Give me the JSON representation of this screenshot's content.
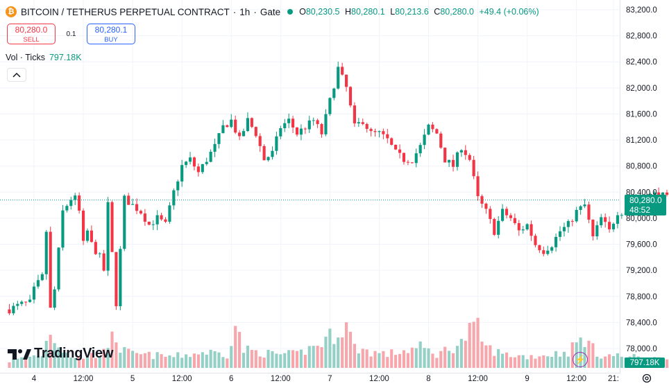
{
  "header": {
    "symbol": "BITCOIN / TETHERUS PERPETUAL CONTRACT",
    "interval": "1h",
    "exchange": "Gate",
    "separator": "·",
    "icon": "bitcoin-icon",
    "ohlc": {
      "o_label": "O",
      "o": "80,230.5",
      "h_label": "H",
      "h": "80,280.1",
      "l_label": "L",
      "l": "80,213.6",
      "c_label": "C",
      "c": "80,280.0",
      "change": "+49.4 (+0.06%)"
    }
  },
  "trade": {
    "sell_price": "80,280.0",
    "sell_label": "SELL",
    "spread": "0.1",
    "buy_price": "80,280.1",
    "buy_label": "BUY"
  },
  "volume_legend": {
    "label": "Vol · Ticks",
    "value": "797.18K"
  },
  "logo_text": "TradingView",
  "last_price": {
    "value": "80,280.0",
    "countdown": "48:52"
  },
  "last_volume": "797.18K",
  "colors": {
    "up": "#089981",
    "down": "#f23645",
    "up_volume": "#95d0c7",
    "down_volume": "#f7a6ab",
    "grid": "#f0f3fa"
  },
  "chart_data": {
    "type": "candlestick",
    "y_axis": {
      "min": 77800,
      "max": 83300,
      "ticks": [
        "83,200.0",
        "82,800.0",
        "82,400.0",
        "82,000.0",
        "81,600.0",
        "81,200.0",
        "80,800.0",
        "80,400.0",
        "80,000.0",
        "79,600.0",
        "79,200.0",
        "78,800.0",
        "78,400.0",
        "78,000.0"
      ],
      "tick_values": [
        83200,
        82800,
        82400,
        82000,
        81600,
        81200,
        80800,
        80400,
        80000,
        79600,
        79200,
        78800,
        78400,
        78000
      ]
    },
    "x_axis": {
      "labels": [
        "4",
        "12:00",
        "5",
        "12:00",
        "6",
        "12:00",
        "7",
        "12:00",
        "8",
        "12:00",
        "9",
        "12:00",
        "21:"
      ],
      "label_hours": [
        0,
        12,
        24,
        36,
        48,
        60,
        72,
        84,
        96,
        108,
        120,
        132,
        141
      ]
    },
    "hours_before_first_label": 6,
    "hours_after_last_label": 0,
    "grid": true,
    "last_price_line": 80280,
    "anchors_price": [
      [
        0,
        78600
      ],
      [
        3,
        78680
      ],
      [
        5,
        78700
      ],
      [
        6,
        78900
      ],
      [
        8,
        79100
      ],
      [
        9,
        79800
      ],
      [
        10,
        78600
      ],
      [
        11,
        78900
      ],
      [
        12,
        79500
      ],
      [
        13,
        80100
      ],
      [
        15,
        80300
      ],
      [
        16,
        80300
      ],
      [
        17,
        80100
      ],
      [
        18,
        79600
      ],
      [
        19,
        79800
      ],
      [
        20,
        79600
      ],
      [
        22,
        79400
      ],
      [
        23,
        79200
      ],
      [
        24,
        80200
      ],
      [
        26,
        78700
      ],
      [
        28,
        80300
      ],
      [
        30,
        80200
      ],
      [
        32,
        80100
      ],
      [
        34,
        79900
      ],
      [
        36,
        80000
      ],
      [
        38,
        79900
      ],
      [
        40,
        80400
      ],
      [
        42,
        80800
      ],
      [
        44,
        80900
      ],
      [
        46,
        80700
      ],
      [
        48,
        80900
      ],
      [
        50,
        81100
      ],
      [
        52,
        81400
      ],
      [
        54,
        81500
      ],
      [
        56,
        81200
      ],
      [
        58,
        81500
      ],
      [
        60,
        81300
      ],
      [
        62,
        80900
      ],
      [
        64,
        81000
      ],
      [
        66,
        81400
      ],
      [
        68,
        81500
      ],
      [
        70,
        81300
      ],
      [
        72,
        81400
      ],
      [
        74,
        81500
      ],
      [
        76,
        81300
      ],
      [
        78,
        81800
      ],
      [
        80,
        82300
      ],
      [
        82,
        82000
      ],
      [
        84,
        81400
      ],
      [
        86,
        81500
      ],
      [
        88,
        81300
      ],
      [
        90,
        81300
      ],
      [
        92,
        81200
      ],
      [
        94,
        81000
      ],
      [
        96,
        80900
      ],
      [
        98,
        80900
      ],
      [
        100,
        81100
      ],
      [
        102,
        81400
      ],
      [
        104,
        81300
      ],
      [
        106,
        80900
      ],
      [
        108,
        80800
      ],
      [
        110,
        81100
      ],
      [
        112,
        80900
      ],
      [
        114,
        80300
      ],
      [
        116,
        80100
      ],
      [
        118,
        79800
      ],
      [
        120,
        80100
      ],
      [
        122,
        80000
      ],
      [
        124,
        79800
      ],
      [
        126,
        79900
      ],
      [
        128,
        79600
      ],
      [
        130,
        79500
      ],
      [
        132,
        79600
      ],
      [
        134,
        79800
      ],
      [
        136,
        79900
      ],
      [
        138,
        80100
      ],
      [
        140,
        80200
      ],
      [
        142,
        79700
      ],
      [
        144,
        80000
      ],
      [
        146,
        79800
      ],
      [
        148,
        80100
      ],
      [
        150,
        80100
      ],
      [
        152,
        80200
      ],
      [
        154,
        80300
      ],
      [
        156,
        80350
      ],
      [
        158,
        80380
      ],
      [
        160,
        80300
      ],
      [
        162,
        80220
      ],
      [
        164,
        80280
      ]
    ],
    "anchors_volume": [
      [
        0,
        0.15
      ],
      [
        8,
        0.3
      ],
      [
        10,
        0.85
      ],
      [
        12,
        0.5
      ],
      [
        16,
        0.2
      ],
      [
        24,
        0.35
      ],
      [
        25,
        0.95
      ],
      [
        27,
        0.4
      ],
      [
        30,
        0.3
      ],
      [
        40,
        0.25
      ],
      [
        48,
        0.35
      ],
      [
        53,
        0.3
      ],
      [
        55,
        0.95
      ],
      [
        57,
        0.4
      ],
      [
        64,
        0.3
      ],
      [
        70,
        0.3
      ],
      [
        76,
        0.55
      ],
      [
        79,
        0.75
      ],
      [
        82,
        0.95
      ],
      [
        84,
        0.45
      ],
      [
        88,
        0.35
      ],
      [
        92,
        0.3
      ],
      [
        100,
        0.45
      ],
      [
        104,
        0.3
      ],
      [
        110,
        0.55
      ],
      [
        112,
        0.8
      ],
      [
        114,
        0.85
      ],
      [
        116,
        0.45
      ],
      [
        120,
        0.3
      ],
      [
        126,
        0.25
      ],
      [
        132,
        0.3
      ],
      [
        136,
        0.35
      ],
      [
        138,
        0.55
      ],
      [
        140,
        0.65
      ],
      [
        143,
        0.3
      ],
      [
        150,
        0.25
      ],
      [
        158,
        0.2
      ],
      [
        164,
        0.15
      ]
    ],
    "volume_axis_max": 1.0
  }
}
